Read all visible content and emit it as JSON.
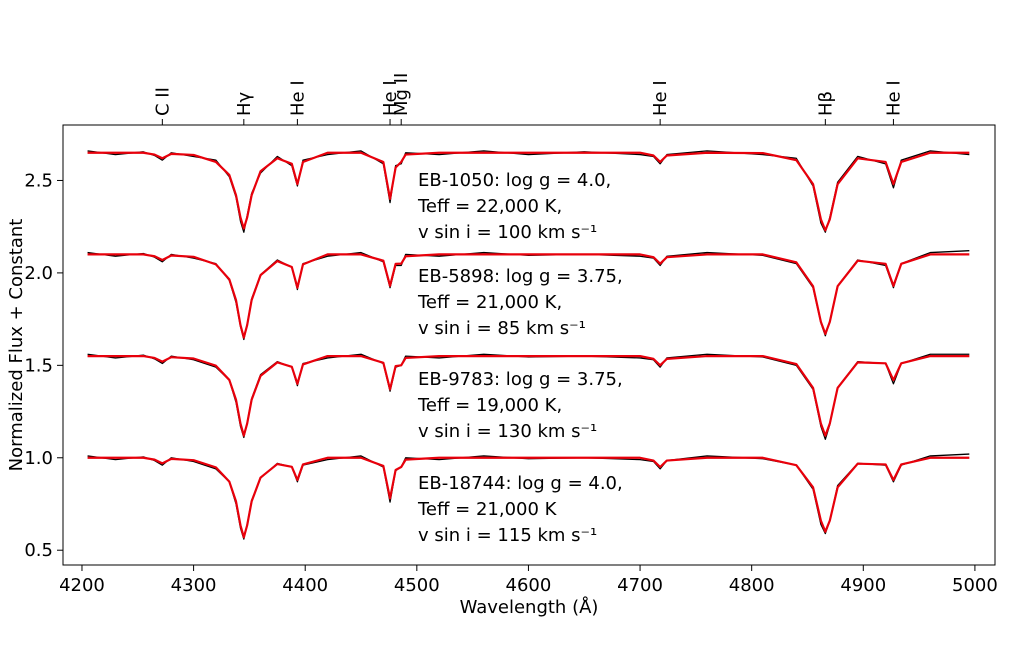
{
  "chart_data": {
    "type": "line",
    "xlabel": "Wavelength (Å)",
    "ylabel": "Normalized Flux + Constant",
    "xlim": [
      4183,
      5018
    ],
    "ylim": [
      0.42,
      2.8
    ],
    "xticks": [
      4200,
      4300,
      4400,
      4500,
      4600,
      4700,
      4800,
      4900,
      5000
    ],
    "yticks": [
      0.5,
      {
        "value": 1,
        "label": "1.0"
      },
      1.5,
      {
        "value": 2,
        "label": "2.0"
      },
      2.5
    ],
    "top_ticks": [
      {
        "value": 4272,
        "label": "C II"
      },
      {
        "value": 4345,
        "label": "Hγ"
      },
      {
        "value": 4393,
        "label": "He I"
      },
      {
        "value": 4476,
        "label": "He I"
      },
      {
        "value": 4486,
        "label": "Mg II"
      },
      {
        "value": 4718,
        "label": "He I"
      },
      {
        "value": 4866,
        "label": "Hβ"
      },
      {
        "value": 4927,
        "label": "He I"
      }
    ],
    "x": [
      4205,
      4230,
      4255,
      4265,
      4272,
      4280,
      4300,
      4320,
      4332,
      4338,
      4342,
      4345,
      4348,
      4352,
      4360,
      4375,
      4388,
      4393,
      4398,
      4420,
      4450,
      4470,
      4476,
      4481,
      4486,
      4490,
      4520,
      4560,
      4600,
      4650,
      4700,
      4712,
      4718,
      4724,
      4760,
      4810,
      4840,
      4855,
      4862,
      4866,
      4870,
      4877,
      4895,
      4920,
      4927,
      4934,
      4960,
      4995
    ],
    "series": [
      {
        "color": "#000000",
        "values": [
          2.66,
          2.64,
          2.655,
          2.635,
          2.61,
          2.65,
          2.63,
          2.61,
          2.52,
          2.41,
          2.28,
          2.22,
          2.31,
          2.43,
          2.54,
          2.63,
          2.58,
          2.47,
          2.61,
          2.64,
          2.66,
          2.59,
          2.38,
          2.58,
          2.59,
          2.65,
          2.64,
          2.66,
          2.64,
          2.655,
          2.64,
          2.63,
          2.59,
          2.64,
          2.66,
          2.64,
          2.62,
          2.47,
          2.27,
          2.22,
          2.3,
          2.49,
          2.63,
          2.59,
          2.46,
          2.61,
          2.66,
          2.64
        ]
      },
      {
        "color": "#e8000b",
        "values": [
          2.65,
          2.65,
          2.65,
          2.64,
          2.62,
          2.644,
          2.638,
          2.6,
          2.53,
          2.42,
          2.3,
          2.24,
          2.3,
          2.42,
          2.55,
          2.62,
          2.59,
          2.48,
          2.6,
          2.65,
          2.65,
          2.6,
          2.4,
          2.57,
          2.6,
          2.64,
          2.65,
          2.65,
          2.65,
          2.65,
          2.65,
          2.635,
          2.6,
          2.635,
          2.65,
          2.648,
          2.61,
          2.48,
          2.29,
          2.23,
          2.29,
          2.48,
          2.62,
          2.6,
          2.48,
          2.6,
          2.65,
          2.65
        ]
      },
      {
        "color": "#000000",
        "values": [
          2.11,
          2.09,
          2.105,
          2.085,
          2.06,
          2.1,
          2.08,
          2.05,
          1.96,
          1.84,
          1.71,
          1.64,
          1.72,
          1.86,
          1.99,
          2.07,
          2.03,
          1.91,
          2.05,
          2.09,
          2.11,
          2.06,
          1.92,
          2.04,
          2.04,
          2.1,
          2.09,
          2.11,
          2.095,
          2.1,
          2.09,
          2.08,
          2.04,
          2.09,
          2.11,
          2.095,
          2.05,
          1.92,
          1.73,
          1.66,
          1.74,
          1.93,
          2.07,
          2.04,
          1.92,
          2.05,
          2.11,
          2.12
        ]
      },
      {
        "color": "#e8000b",
        "values": [
          2.1,
          2.1,
          2.1,
          2.09,
          2.07,
          2.094,
          2.087,
          2.046,
          1.965,
          1.853,
          1.718,
          1.65,
          1.718,
          1.853,
          1.988,
          2.064,
          2.032,
          1.92,
          2.046,
          2.1,
          2.1,
          2.066,
          1.93,
          2.049,
          2.05,
          2.09,
          2.1,
          2.1,
          2.1,
          2.1,
          2.1,
          2.085,
          2.05,
          2.085,
          2.1,
          2.1,
          2.057,
          1.928,
          1.735,
          1.67,
          1.735,
          1.928,
          2.066,
          2.049,
          1.93,
          2.049,
          2.1,
          2.1
        ]
      },
      {
        "color": "#000000",
        "values": [
          1.56,
          1.54,
          1.555,
          1.535,
          1.51,
          1.55,
          1.53,
          1.49,
          1.42,
          1.3,
          1.17,
          1.11,
          1.19,
          1.32,
          1.45,
          1.52,
          1.49,
          1.39,
          1.51,
          1.54,
          1.56,
          1.51,
          1.36,
          1.49,
          1.5,
          1.55,
          1.54,
          1.56,
          1.545,
          1.55,
          1.54,
          1.53,
          1.49,
          1.54,
          1.56,
          1.545,
          1.5,
          1.37,
          1.17,
          1.1,
          1.18,
          1.38,
          1.52,
          1.51,
          1.4,
          1.51,
          1.56,
          1.56
        ]
      },
      {
        "color": "#e8000b",
        "values": [
          1.55,
          1.55,
          1.55,
          1.54,
          1.52,
          1.544,
          1.537,
          1.498,
          1.421,
          1.314,
          1.185,
          1.12,
          1.185,
          1.314,
          1.443,
          1.516,
          1.492,
          1.4,
          1.505,
          1.55,
          1.55,
          1.514,
          1.37,
          1.496,
          1.5,
          1.54,
          1.55,
          1.55,
          1.55,
          1.55,
          1.55,
          1.535,
          1.5,
          1.535,
          1.55,
          1.55,
          1.507,
          1.378,
          1.185,
          1.12,
          1.185,
          1.378,
          1.516,
          1.511,
          1.42,
          1.511,
          1.55,
          1.55
        ]
      },
      {
        "color": "#000000",
        "values": [
          1.01,
          0.99,
          1.005,
          0.985,
          0.96,
          1.0,
          0.98,
          0.94,
          0.87,
          0.75,
          0.62,
          0.56,
          0.64,
          0.77,
          0.89,
          0.97,
          0.95,
          0.87,
          0.96,
          0.99,
          1.01,
          0.95,
          0.76,
          0.93,
          0.95,
          1.0,
          0.99,
          1.01,
          0.995,
          1.0,
          0.99,
          0.98,
          0.94,
          0.985,
          1.01,
          0.995,
          0.96,
          0.83,
          0.64,
          0.59,
          0.66,
          0.85,
          0.97,
          0.96,
          0.87,
          0.96,
          1.01,
          1.02
        ]
      },
      {
        "color": "#e8000b",
        "values": [
          1.0,
          1.0,
          1.0,
          0.99,
          0.97,
          0.994,
          0.987,
          0.948,
          0.871,
          0.764,
          0.635,
          0.57,
          0.635,
          0.764,
          0.893,
          0.966,
          0.951,
          0.88,
          0.964,
          1.0,
          1.0,
          0.956,
          0.78,
          0.934,
          0.95,
          0.99,
          1.0,
          1.0,
          1.0,
          1.0,
          1.0,
          0.985,
          0.95,
          0.985,
          1.0,
          1.0,
          0.96,
          0.84,
          0.66,
          0.6,
          0.66,
          0.84,
          0.968,
          0.964,
          0.88,
          0.964,
          1.0,
          1.0
        ]
      }
    ],
    "annotations": [
      [
        "EB-1050: log g = 4.0,",
        "Teff = 22,000 K,",
        "v sin i = 100 km s⁻¹"
      ],
      [
        "EB-5898: log g = 3.75,",
        "Teff = 21,000 K,",
        "v sin i = 85 km s⁻¹"
      ],
      [
        "EB-9783: log g = 3.75,",
        "Teff = 19,000 K,",
        "v sin i = 130 km s⁻¹"
      ],
      [
        "EB-18744: log g = 4.0,",
        "Teff = 21,000 K",
        "v sin i = 115 km s⁻¹"
      ]
    ]
  }
}
